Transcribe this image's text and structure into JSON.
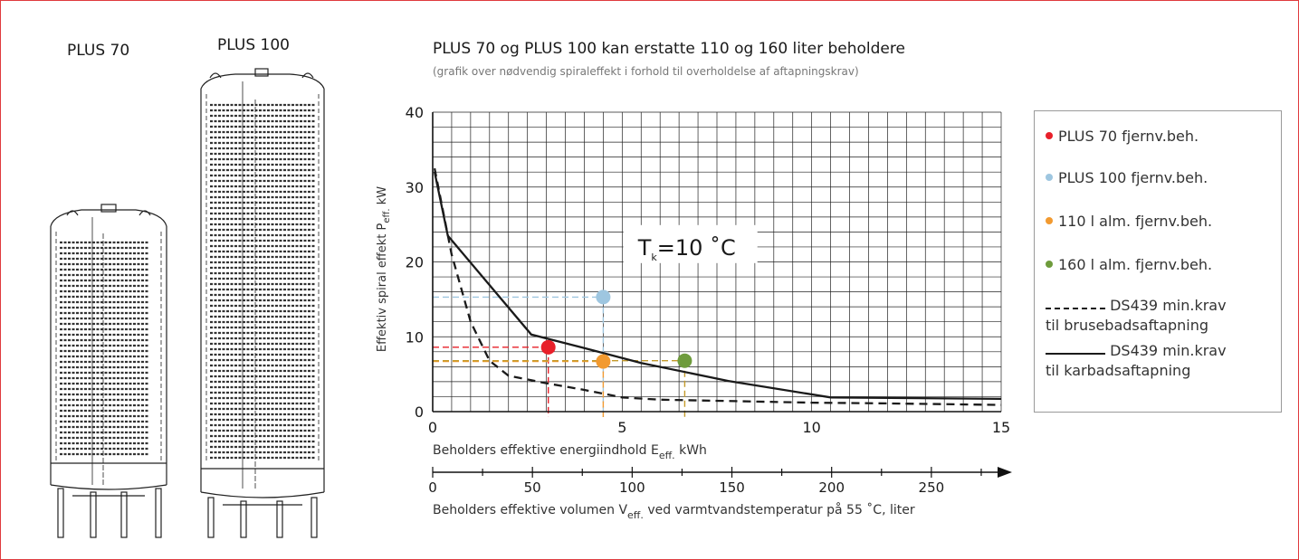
{
  "products": {
    "plus70_label": "PLUS 70",
    "plus100_label": "PLUS 100"
  },
  "legend": {
    "items": [
      {
        "label": "PLUS 70 fjernv.beh.",
        "color": "#e8202a"
      },
      {
        "label": "PLUS 100 fjernv.beh.",
        "color": "#9ec6e0"
      },
      {
        "label": "110 l alm. fjernv.beh.",
        "color": "#f29a30"
      },
      {
        "label": "160 l alm. fjernv.beh.",
        "color": "#6e9b3c"
      }
    ],
    "dashed_line_1": "DS439 min.krav",
    "dashed_line_2": "til brusebadsaftapning",
    "solid_line_1": "DS439 min.krav",
    "solid_line_2": "til karbadsaftapning"
  },
  "chart_data": {
    "type": "line",
    "title": "PLUS 70 og PLUS 100 kan erstatte 110 og 160 liter beholdere",
    "subtitle": "(grafik over nødvendig spiraleffekt i forhold til overholdelse af aftapningskrav)",
    "ylabel": "Effektiv spiral effekt P",
    "ylabel_sub": "eff.",
    "ylabel_unit": " kW",
    "xlabel": "Beholders effektive energiindhold E",
    "xlabel_sub": "eff.",
    "xlabel_unit": " kWh",
    "xlim": [
      0,
      15
    ],
    "ylim": [
      0,
      40
    ],
    "x_ticks": [
      0,
      5,
      10,
      15
    ],
    "y_ticks": [
      0,
      10,
      20,
      30,
      40
    ],
    "grid": true,
    "annotation": {
      "text": "T",
      "sub": "k",
      "rest": "=10 ˚C",
      "x": 6.8,
      "y": 22.5
    },
    "secondary_axis": {
      "label": "Beholders effektive volumen V",
      "label_sub": "eff.",
      "label_rest": " ved varmtvandstemperatur på 55 ˚C, liter",
      "ticks": [
        0,
        50,
        100,
        150,
        200,
        250
      ],
      "liters_per_kwh": 19.0
    },
    "series": [
      {
        "name": "DS439 min.krav til karbadsaftapning",
        "style": "solid",
        "x": [
          0.05,
          0.4,
          2.6,
          4.0,
          5.5,
          7.8,
          10.5,
          15.0
        ],
        "y": [
          32.0,
          23.5,
          10.3,
          8.5,
          6.5,
          4.1,
          1.9,
          1.7
        ]
      },
      {
        "name": "DS439 min.krav til brusebadsaftapning",
        "style": "dashed",
        "x": [
          0.05,
          0.5,
          1.0,
          1.5,
          2.0,
          3.0,
          4.0,
          5.0,
          6.0,
          8.0,
          10.0,
          12.0,
          15.0
        ],
        "y": [
          32.5,
          21.0,
          12.0,
          6.8,
          4.8,
          3.8,
          2.9,
          1.9,
          1.6,
          1.4,
          1.2,
          1.1,
          0.9
        ]
      }
    ],
    "points": [
      {
        "name": "PLUS 70 fjernv.beh.",
        "x": 3.05,
        "y": 8.6,
        "color": "#e8202a",
        "guide": "#e8202a"
      },
      {
        "name": "PLUS 100 fjernv.beh.",
        "x": 4.5,
        "y": 15.3,
        "color": "#9ec6e0",
        "guide": "#9ec6e0"
      },
      {
        "name": "110 l alm. fjernv.beh.",
        "x": 4.5,
        "y": 6.7,
        "color": "#f29a30",
        "guide": "#f29a30"
      },
      {
        "name": "160 l alm. fjernv.beh.",
        "x": 6.65,
        "y": 6.8,
        "color": "#6e9b3c",
        "guide": "#c49a2a"
      }
    ]
  }
}
